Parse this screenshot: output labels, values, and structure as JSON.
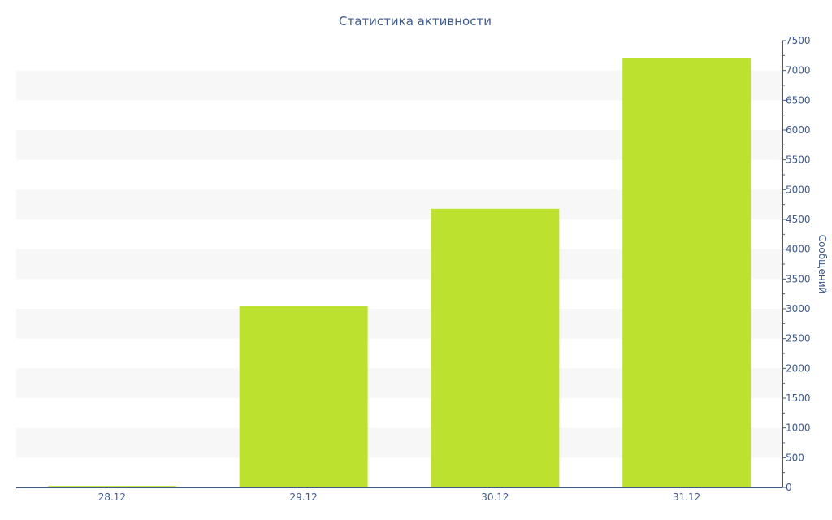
{
  "colors": {
    "bar": "#bce22f",
    "axis": "#3f5a8a",
    "band": "#f7f7f7",
    "text": "#3f5a8a"
  },
  "chart_data": {
    "type": "bar",
    "title": "Статистика активности",
    "xlabel": "",
    "ylabel": "Сообщений",
    "categories": [
      "28.12",
      "29.12",
      "30.12",
      "31.12"
    ],
    "values": [
      25,
      3050,
      4680,
      7200
    ],
    "ylim": [
      0,
      7500
    ],
    "ytick_step": 500,
    "yaxis_side": "right",
    "grid": "alternating horizontal bands",
    "legend": "none"
  }
}
